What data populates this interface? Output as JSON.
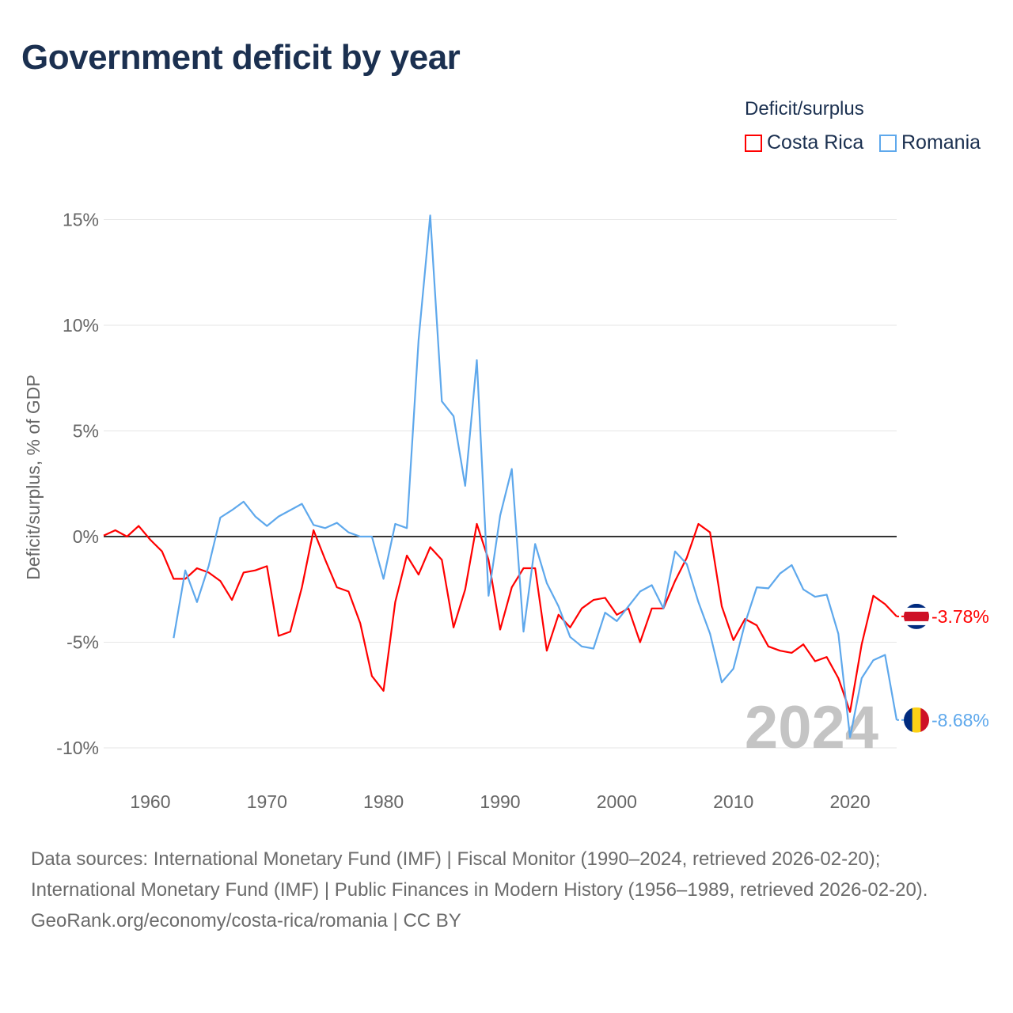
{
  "title": "Government deficit by year",
  "legend": {
    "title": "Deficit/surplus",
    "items": [
      {
        "label": "Costa Rica",
        "color": "#ff0000"
      },
      {
        "label": "Romania",
        "color": "#5ea8ec"
      }
    ]
  },
  "footer": {
    "sources": "Data sources: International Monetary Fund (IMF) | Fiscal Monitor (1990–2024, retrieved 2026-02-20); International Monetary Fund (IMF) | Public Finances in Modern History (1956–1989, retrieved 2026-02-20).",
    "credit": "GeoRank.org/economy/costa-rica/romania | CC BY"
  },
  "chart_data": {
    "type": "line",
    "title": "Government deficit by year",
    "ylabel": "Deficit/surplus, % of GDP",
    "xlabel": "",
    "xlim": [
      1956,
      2024
    ],
    "ylim": [
      -11.5,
      16
    ],
    "x_ticks": [
      1960,
      1970,
      1980,
      1990,
      2000,
      2010,
      2020
    ],
    "x_tick_labels": [
      "1960",
      "1970",
      "1980",
      "1990",
      "2000",
      "2010",
      "2020"
    ],
    "y_ticks": [
      15,
      10,
      5,
      0,
      -5,
      -10
    ],
    "y_tick_labels": [
      "15%",
      "10%",
      "5%",
      "0%",
      "-5%",
      "-10%"
    ],
    "grid": true,
    "legend_position": "top-right",
    "year_watermark": "2024",
    "series": [
      {
        "name": "Costa Rica",
        "color": "#ff0000",
        "start_year": 1956,
        "end_label": "-3.78%",
        "values": [
          0.05,
          0.3,
          0,
          0.5,
          -0.15,
          -0.7,
          -2.0,
          -2.0,
          -1.5,
          -1.7,
          -2.1,
          -3.0,
          -1.7,
          -1.6,
          -1.4,
          -4.7,
          -4.5,
          -2.4,
          0.3,
          -1.1,
          -2.4,
          -2.6,
          -4.1,
          -6.6,
          -7.3,
          -3.1,
          -0.9,
          -1.8,
          -0.5,
          -1.1,
          -4.3,
          -2.5,
          0.6,
          -1.1,
          -4.4,
          -2.4,
          -1.5,
          -1.5,
          -5.4,
          -3.7,
          -4.3,
          -3.4,
          -3.0,
          -2.9,
          -3.7,
          -3.4,
          -5.0,
          -3.4,
          -3.4,
          -2.1,
          -1.0,
          0.6,
          0.2,
          -3.3,
          -4.9,
          -3.9,
          -4.2,
          -5.2,
          -5.4,
          -5.5,
          -5.1,
          -5.9,
          -5.7,
          -6.7,
          -8.3,
          -5.1,
          -2.8,
          -3.2,
          -3.78
        ]
      },
      {
        "name": "Romania",
        "color": "#5ea8ec",
        "start_year": 1962,
        "end_label": "-8.68%",
        "values": [
          -4.8,
          -1.6,
          -3.1,
          -1.4,
          0.9,
          1.25,
          1.65,
          0.95,
          0.5,
          0.95,
          1.25,
          1.55,
          0.55,
          0.4,
          0.65,
          0.2,
          0,
          0,
          -2.0,
          0.6,
          0.4,
          9.3,
          15.2,
          6.4,
          5.7,
          2.4,
          8.35,
          -2.8,
          1.0,
          3.2,
          -4.5,
          -0.35,
          -2.2,
          -3.3,
          -4.75,
          -5.2,
          -5.3,
          -3.6,
          -4.0,
          -3.3,
          -2.6,
          -2.3,
          -3.4,
          -0.7,
          -1.3,
          -3.1,
          -4.6,
          -6.9,
          -6.25,
          -4.1,
          -2.4,
          -2.45,
          -1.75,
          -1.35,
          -2.5,
          -2.85,
          -2.75,
          -4.6,
          -9.5,
          -6.7,
          -5.85,
          -5.6,
          -8.68
        ]
      }
    ]
  }
}
